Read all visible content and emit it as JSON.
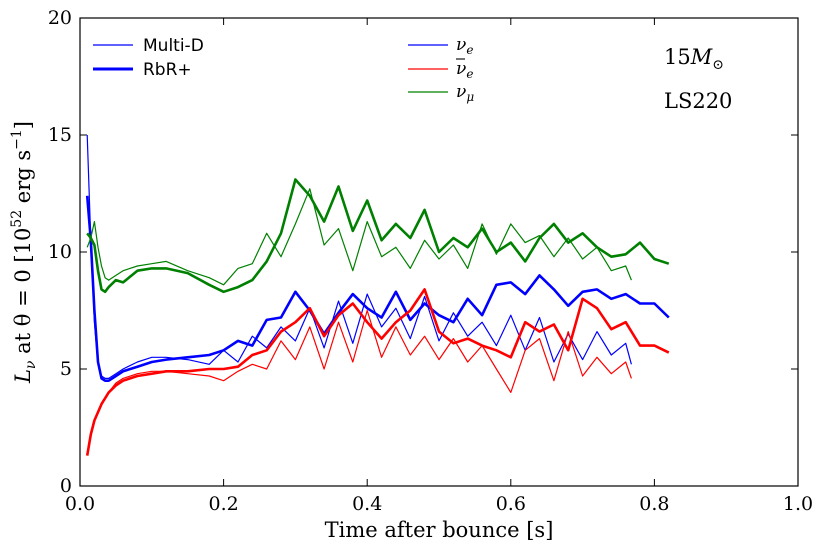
{
  "chart_data": {
    "type": "line",
    "xlabel": "Time after bounce [s]",
    "ylabel": "L_ν at θ = 0 [10^52 erg s^-1]",
    "ylabel_parts": {
      "main": "L",
      "sub": "ν",
      "mid": " at θ = 0 [10",
      "sup1": "52",
      "unit": " erg s",
      "sup2": "−1",
      "close": "]"
    },
    "xlim": [
      0.0,
      1.0
    ],
    "ylim": [
      0,
      20
    ],
    "xticks": [
      0.0,
      0.2,
      0.4,
      0.6,
      0.8,
      1.0
    ],
    "xtick_labels": [
      "0.0",
      "0.2",
      "0.4",
      "0.6",
      "0.8",
      "1.0"
    ],
    "yticks": [
      0,
      5,
      10,
      15,
      20
    ],
    "ytick_labels": [
      "0",
      "5",
      "10",
      "15",
      "20"
    ],
    "grid": false,
    "legend_style": [
      {
        "label": "Multi-D",
        "width": "thin"
      },
      {
        "label": "RbR+",
        "width": "thick"
      }
    ],
    "legend_species": [
      {
        "label": "ν",
        "sub": "e",
        "bar": false,
        "color": "#0000ff"
      },
      {
        "label": "ν",
        "sub": "e",
        "bar": true,
        "color": "#ff0000"
      },
      {
        "label": "ν",
        "sub": "μ",
        "bar": false,
        "color": "#008000"
      }
    ],
    "annotations": {
      "mass_main": "15",
      "mass_M": "M",
      "mass_sub": "⊙",
      "eos": "LS220"
    },
    "series": [
      {
        "species": "nu_e",
        "model": "Multi-D",
        "color": "#0000ff",
        "x": [
          0.01,
          0.015,
          0.02,
          0.025,
          0.03,
          0.035,
          0.04,
          0.05,
          0.06,
          0.08,
          0.1,
          0.12,
          0.15,
          0.18,
          0.2,
          0.22,
          0.24,
          0.26,
          0.28,
          0.3,
          0.32,
          0.34,
          0.36,
          0.38,
          0.4,
          0.42,
          0.44,
          0.46,
          0.48,
          0.5,
          0.52,
          0.54,
          0.56,
          0.58,
          0.6,
          0.62,
          0.64,
          0.66,
          0.68,
          0.7,
          0.72,
          0.74,
          0.76,
          0.768
        ],
        "y": [
          15.0,
          10.5,
          7.0,
          5.2,
          4.7,
          4.6,
          4.6,
          4.8,
          5.0,
          5.3,
          5.5,
          5.5,
          5.4,
          5.2,
          5.8,
          5.3,
          6.4,
          5.9,
          6.8,
          6.2,
          7.6,
          5.9,
          7.9,
          6.1,
          8.2,
          6.8,
          7.6,
          6.3,
          8.1,
          6.2,
          7.4,
          6.4,
          7.0,
          6.0,
          7.3,
          5.8,
          7.2,
          5.3,
          6.5,
          5.4,
          6.6,
          5.6,
          6.1,
          5.2
        ]
      },
      {
        "species": "nu_e",
        "model": "RbR+",
        "color": "#0000ff",
        "x": [
          0.01,
          0.015,
          0.02,
          0.025,
          0.03,
          0.035,
          0.04,
          0.05,
          0.06,
          0.08,
          0.1,
          0.12,
          0.15,
          0.18,
          0.2,
          0.22,
          0.24,
          0.26,
          0.28,
          0.3,
          0.32,
          0.34,
          0.36,
          0.38,
          0.4,
          0.42,
          0.44,
          0.46,
          0.48,
          0.5,
          0.52,
          0.54,
          0.56,
          0.58,
          0.6,
          0.62,
          0.64,
          0.66,
          0.68,
          0.7,
          0.72,
          0.74,
          0.76,
          0.78,
          0.8,
          0.82
        ],
        "y": [
          12.4,
          10.5,
          7.5,
          5.3,
          4.6,
          4.5,
          4.5,
          4.7,
          4.9,
          5.1,
          5.3,
          5.4,
          5.5,
          5.6,
          5.8,
          6.2,
          6.0,
          7.1,
          7.2,
          8.3,
          7.5,
          6.5,
          7.4,
          8.2,
          7.6,
          7.2,
          8.3,
          7.1,
          7.8,
          7.3,
          7.0,
          8.0,
          7.3,
          8.6,
          8.7,
          8.2,
          9.0,
          8.4,
          7.7,
          8.3,
          8.4,
          8.0,
          8.2,
          7.8,
          7.8,
          7.2
        ]
      },
      {
        "species": "nu_e_bar",
        "model": "Multi-D",
        "color": "#ff0000",
        "x": [
          0.01,
          0.015,
          0.02,
          0.03,
          0.04,
          0.05,
          0.06,
          0.08,
          0.1,
          0.12,
          0.15,
          0.18,
          0.2,
          0.22,
          0.24,
          0.26,
          0.28,
          0.3,
          0.32,
          0.34,
          0.36,
          0.38,
          0.4,
          0.42,
          0.44,
          0.46,
          0.48,
          0.5,
          0.52,
          0.54,
          0.56,
          0.58,
          0.6,
          0.62,
          0.64,
          0.66,
          0.68,
          0.7,
          0.72,
          0.74,
          0.76,
          0.768
        ],
        "y": [
          1.4,
          2.3,
          2.8,
          3.5,
          4.0,
          4.4,
          4.6,
          4.8,
          4.9,
          4.9,
          4.8,
          4.7,
          4.5,
          4.9,
          5.2,
          5.0,
          6.2,
          5.4,
          6.8,
          5.0,
          7.0,
          5.3,
          7.5,
          5.5,
          6.8,
          5.6,
          6.4,
          5.4,
          6.3,
          5.3,
          6.0,
          5.0,
          4.0,
          5.8,
          6.3,
          4.5,
          6.6,
          4.7,
          5.5,
          4.8,
          5.3,
          4.6
        ]
      },
      {
        "species": "nu_e_bar",
        "model": "RbR+",
        "color": "#ff0000",
        "x": [
          0.01,
          0.015,
          0.02,
          0.03,
          0.04,
          0.05,
          0.06,
          0.08,
          0.1,
          0.12,
          0.15,
          0.18,
          0.2,
          0.22,
          0.24,
          0.26,
          0.28,
          0.3,
          0.32,
          0.34,
          0.36,
          0.38,
          0.4,
          0.42,
          0.44,
          0.46,
          0.48,
          0.5,
          0.52,
          0.54,
          0.56,
          0.58,
          0.6,
          0.62,
          0.64,
          0.66,
          0.68,
          0.7,
          0.72,
          0.74,
          0.76,
          0.78,
          0.8,
          0.82
        ],
        "y": [
          1.3,
          2.2,
          2.8,
          3.5,
          4.0,
          4.3,
          4.5,
          4.7,
          4.8,
          4.9,
          4.9,
          5.0,
          5.0,
          5.1,
          5.6,
          5.8,
          6.6,
          7.0,
          7.6,
          6.4,
          7.3,
          7.8,
          7.0,
          6.3,
          7.0,
          7.5,
          8.4,
          6.6,
          6.1,
          6.3,
          6.0,
          5.8,
          5.5,
          7.0,
          6.6,
          6.9,
          5.8,
          8.0,
          7.6,
          6.7,
          7.0,
          6.0,
          6.0,
          5.7
        ]
      },
      {
        "species": "nu_mu",
        "model": "Multi-D",
        "color": "#008000",
        "x": [
          0.01,
          0.015,
          0.02,
          0.025,
          0.03,
          0.035,
          0.04,
          0.05,
          0.06,
          0.08,
          0.1,
          0.12,
          0.15,
          0.18,
          0.2,
          0.22,
          0.24,
          0.26,
          0.28,
          0.3,
          0.32,
          0.34,
          0.36,
          0.38,
          0.4,
          0.42,
          0.44,
          0.46,
          0.48,
          0.5,
          0.52,
          0.54,
          0.56,
          0.58,
          0.6,
          0.62,
          0.64,
          0.66,
          0.68,
          0.7,
          0.72,
          0.74,
          0.76,
          0.768
        ],
        "y": [
          10.2,
          10.6,
          11.3,
          10.2,
          9.4,
          8.9,
          8.8,
          9.0,
          9.2,
          9.4,
          9.5,
          9.6,
          9.2,
          8.9,
          8.6,
          9.3,
          9.5,
          10.8,
          9.8,
          11.2,
          12.7,
          10.3,
          11.0,
          9.2,
          11.3,
          9.8,
          10.2,
          9.3,
          10.5,
          9.7,
          10.3,
          9.3,
          11.2,
          9.9,
          11.2,
          10.4,
          10.7,
          9.8,
          10.6,
          9.7,
          10.2,
          9.2,
          9.4,
          8.8
        ]
      },
      {
        "species": "nu_mu",
        "model": "RbR+",
        "color": "#008000",
        "x": [
          0.01,
          0.015,
          0.02,
          0.025,
          0.03,
          0.035,
          0.04,
          0.05,
          0.06,
          0.08,
          0.1,
          0.12,
          0.15,
          0.18,
          0.2,
          0.22,
          0.24,
          0.26,
          0.28,
          0.3,
          0.32,
          0.34,
          0.36,
          0.38,
          0.4,
          0.42,
          0.44,
          0.46,
          0.48,
          0.5,
          0.52,
          0.54,
          0.56,
          0.58,
          0.6,
          0.62,
          0.64,
          0.66,
          0.68,
          0.7,
          0.72,
          0.74,
          0.76,
          0.78,
          0.8,
          0.82
        ],
        "y": [
          10.8,
          10.6,
          10.3,
          9.2,
          8.4,
          8.3,
          8.5,
          8.8,
          8.7,
          9.2,
          9.3,
          9.3,
          9.1,
          8.6,
          8.3,
          8.5,
          8.8,
          9.6,
          10.8,
          13.1,
          12.4,
          11.3,
          12.8,
          10.9,
          12.2,
          10.5,
          11.2,
          10.6,
          11.8,
          10.0,
          10.6,
          10.2,
          11.0,
          10.0,
          10.4,
          9.6,
          10.6,
          11.2,
          10.4,
          10.8,
          10.2,
          9.8,
          9.9,
          10.4,
          9.7,
          9.5
        ]
      }
    ]
  }
}
